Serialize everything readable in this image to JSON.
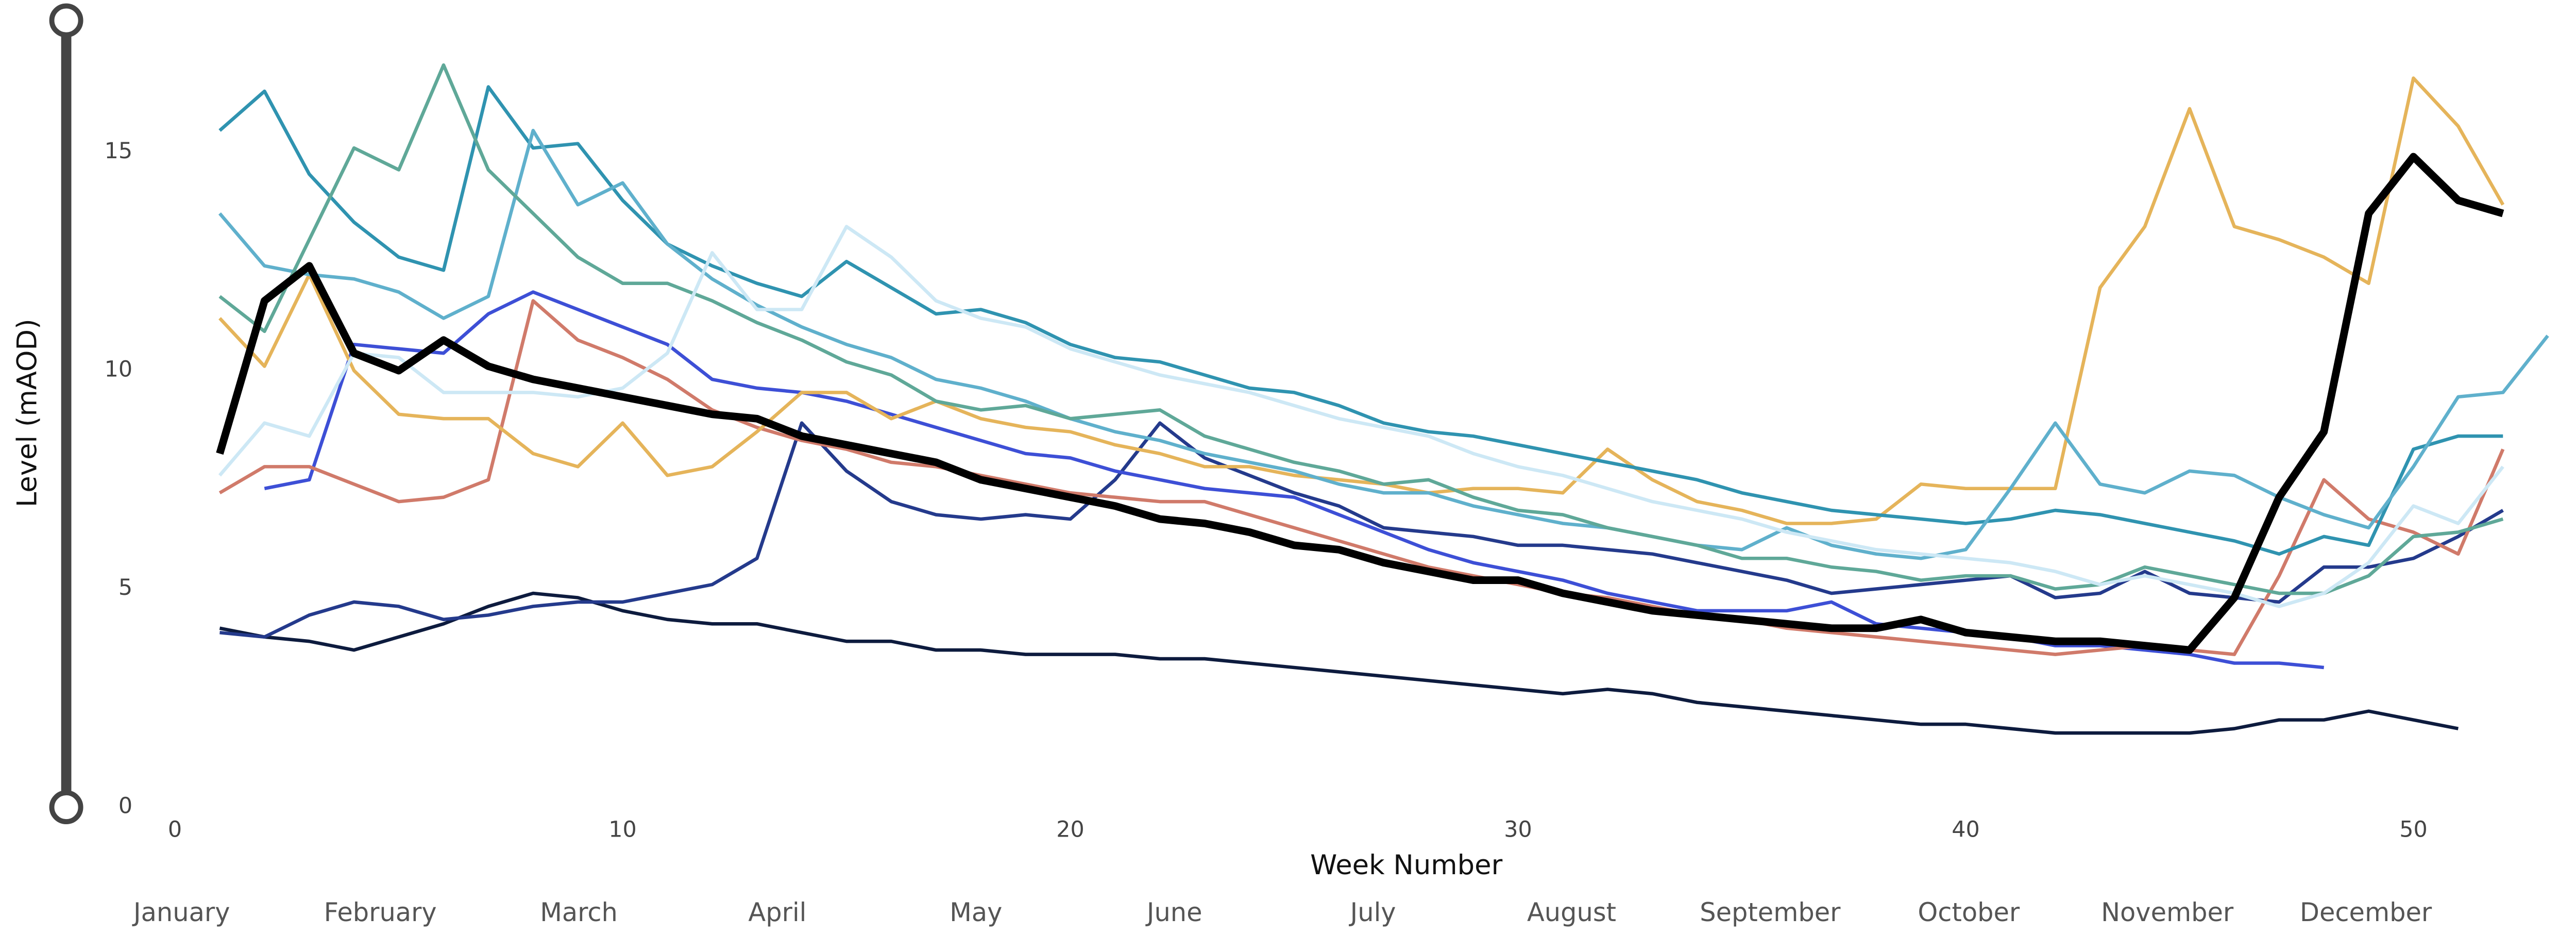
{
  "chart_data": {
    "type": "line",
    "x_label": "Week Number",
    "y_label": "Level (mAOD)",
    "x": [
      1,
      2,
      3,
      4,
      5,
      6,
      7,
      8,
      9,
      10,
      11,
      12,
      13,
      14,
      15,
      16,
      17,
      18,
      19,
      20,
      21,
      22,
      23,
      24,
      25,
      26,
      27,
      28,
      29,
      30,
      31,
      32,
      33,
      34,
      35,
      36,
      37,
      38,
      39,
      40,
      41,
      42,
      43,
      44,
      45,
      46,
      47,
      48,
      49,
      50,
      51,
      52,
      53
    ],
    "xlim": [
      0,
      53
    ],
    "xticks": [
      0,
      10,
      20,
      30,
      40,
      50
    ],
    "ylim": [
      0,
      18.1
    ],
    "yticks": [
      0,
      5,
      10,
      15
    ],
    "months": [
      "January",
      "February",
      "March",
      "April",
      "May",
      "June",
      "July",
      "August",
      "September",
      "October",
      "November",
      "December"
    ],
    "series": [
      {
        "color": "#0d1b3e",
        "line_width": 2,
        "values": [
          4.1,
          3.9,
          3.8,
          3.6,
          3.9,
          4.2,
          4.6,
          4.9,
          4.8,
          4.5,
          4.3,
          4.2,
          4.2,
          4.0,
          3.8,
          3.8,
          3.6,
          3.6,
          3.5,
          3.5,
          3.5,
          3.4,
          3.4,
          3.3,
          3.2,
          3.1,
          3.0,
          2.9,
          2.8,
          2.7,
          2.6,
          2.7,
          2.6,
          2.4,
          2.3,
          2.2,
          2.1,
          2.0,
          1.9,
          1.9,
          1.8,
          1.7,
          1.7,
          1.7,
          1.7,
          1.8,
          2.0,
          2.0,
          2.2,
          2.0,
          1.8,
          null,
          null
        ]
      },
      {
        "color": "#243a8c",
        "line_width": 2,
        "values": [
          4.0,
          3.9,
          4.4,
          4.7,
          4.6,
          4.3,
          4.4,
          4.6,
          4.7,
          4.7,
          4.9,
          5.1,
          5.7,
          8.8,
          7.7,
          7.0,
          6.7,
          6.6,
          6.7,
          6.6,
          7.5,
          8.8,
          8.0,
          7.6,
          7.2,
          6.9,
          6.4,
          6.3,
          6.2,
          6.0,
          6.0,
          5.9,
          5.8,
          5.6,
          5.4,
          5.2,
          4.9,
          5.0,
          5.1,
          5.2,
          5.3,
          4.8,
          4.9,
          5.4,
          4.9,
          4.8,
          4.7,
          5.5,
          5.5,
          5.7,
          6.2,
          6.8,
          null
        ]
      },
      {
        "color": "#3d4fd6",
        "line_width": 2,
        "values": [
          null,
          7.3,
          7.5,
          10.6,
          10.5,
          10.4,
          11.3,
          11.8,
          11.4,
          11.0,
          10.6,
          9.8,
          9.6,
          9.5,
          9.3,
          9.0,
          8.7,
          8.4,
          8.1,
          8.0,
          7.7,
          7.5,
          7.3,
          7.2,
          7.1,
          6.7,
          6.3,
          5.9,
          5.6,
          5.4,
          5.2,
          4.9,
          4.7,
          4.5,
          4.5,
          4.5,
          4.7,
          4.2,
          4.1,
          4.0,
          3.9,
          3.7,
          3.7,
          3.6,
          3.5,
          3.3,
          3.3,
          3.2,
          null,
          null,
          null,
          null,
          null
        ]
      },
      {
        "color": "#d07a6a",
        "line_width": 2,
        "values": [
          7.2,
          7.8,
          7.8,
          7.4,
          7.0,
          7.1,
          7.5,
          11.6,
          10.7,
          10.3,
          9.8,
          9.1,
          8.7,
          8.4,
          8.2,
          7.9,
          7.8,
          7.6,
          7.4,
          7.2,
          7.1,
          7.0,
          7.0,
          6.7,
          6.4,
          6.1,
          5.8,
          5.5,
          5.3,
          5.1,
          4.9,
          4.8,
          4.6,
          4.4,
          4.3,
          4.1,
          4.0,
          3.9,
          3.8,
          3.7,
          3.6,
          3.5,
          3.6,
          3.7,
          3.6,
          3.5,
          5.3,
          7.5,
          6.6,
          6.3,
          5.8,
          8.2,
          null
        ]
      },
      {
        "color": "#e5b45a",
        "line_width": 2,
        "values": [
          11.2,
          10.1,
          12.2,
          10.0,
          9.0,
          8.9,
          8.9,
          8.1,
          7.8,
          8.8,
          7.6,
          7.8,
          8.6,
          9.5,
          9.5,
          8.9,
          9.3,
          8.9,
          8.7,
          8.6,
          8.3,
          8.1,
          7.8,
          7.8,
          7.6,
          7.5,
          7.4,
          7.2,
          7.3,
          7.3,
          7.2,
          8.2,
          7.5,
          7.0,
          6.8,
          6.5,
          6.5,
          6.6,
          7.4,
          7.3,
          7.3,
          7.3,
          11.9,
          13.3,
          16.0,
          13.3,
          13.0,
          12.6,
          12.0,
          16.7,
          15.6,
          13.8,
          null
        ]
      },
      {
        "color": "#2f93b0",
        "line_width": 2,
        "values": [
          15.5,
          16.4,
          14.5,
          13.4,
          12.6,
          12.3,
          16.5,
          15.1,
          15.2,
          13.9,
          12.9,
          12.4,
          12.0,
          11.7,
          12.5,
          11.9,
          11.3,
          11.4,
          11.1,
          10.6,
          10.3,
          10.2,
          9.9,
          9.6,
          9.5,
          9.2,
          8.8,
          8.6,
          8.5,
          8.3,
          8.1,
          7.9,
          7.7,
          7.5,
          7.2,
          7.0,
          6.8,
          6.7,
          6.6,
          6.5,
          6.6,
          6.8,
          6.7,
          6.5,
          6.3,
          6.1,
          5.8,
          6.2,
          6.0,
          8.2,
          8.5,
          8.5,
          null
        ]
      },
      {
        "color": "#5fb0cc",
        "line_width": 2,
        "values": [
          13.6,
          12.4,
          12.2,
          12.1,
          11.8,
          11.2,
          11.7,
          15.5,
          13.8,
          14.3,
          12.9,
          12.1,
          11.5,
          11.0,
          10.6,
          10.3,
          9.8,
          9.6,
          9.3,
          8.9,
          8.6,
          8.4,
          8.1,
          7.9,
          7.7,
          7.4,
          7.2,
          7.2,
          6.9,
          6.7,
          6.5,
          6.4,
          6.2,
          6.0,
          5.9,
          6.4,
          6.0,
          5.8,
          5.7,
          5.9,
          7.3,
          8.8,
          7.4,
          7.2,
          7.7,
          7.6,
          7.1,
          6.7,
          6.4,
          7.8,
          9.4,
          9.5,
          10.8
        ]
      },
      {
        "color": "#5fa898",
        "line_width": 2,
        "values": [
          11.7,
          10.9,
          13.0,
          15.1,
          14.6,
          17.0,
          14.6,
          13.6,
          12.6,
          12.0,
          12.0,
          11.6,
          11.1,
          10.7,
          10.2,
          9.9,
          9.3,
          9.1,
          9.2,
          8.9,
          9.0,
          9.1,
          8.5,
          8.2,
          7.9,
          7.7,
          7.4,
          7.5,
          7.1,
          6.8,
          6.7,
          6.4,
          6.2,
          6.0,
          5.7,
          5.7,
          5.5,
          5.4,
          5.2,
          5.3,
          5.3,
          5.0,
          5.1,
          5.5,
          5.3,
          5.1,
          4.9,
          4.9,
          5.3,
          6.2,
          6.3,
          6.6,
          null
        ]
      },
      {
        "color": "#cde8f5",
        "line_width": 2,
        "values": [
          7.6,
          8.8,
          8.5,
          10.4,
          10.3,
          9.5,
          9.5,
          9.5,
          9.4,
          9.6,
          10.4,
          12.7,
          11.4,
          11.4,
          13.3,
          12.6,
          11.6,
          11.2,
          11.0,
          10.5,
          10.2,
          9.9,
          9.7,
          9.5,
          9.2,
          8.9,
          8.7,
          8.5,
          8.1,
          7.8,
          7.6,
          7.3,
          7.0,
          6.8,
          6.6,
          6.3,
          6.1,
          5.9,
          5.8,
          5.7,
          5.6,
          5.4,
          5.1,
          5.3,
          5.1,
          4.9,
          4.6,
          4.9,
          5.6,
          6.9,
          6.5,
          7.8,
          null
        ]
      },
      {
        "color": "#000000",
        "line_width": 4.5,
        "values": [
          8.1,
          11.6,
          12.4,
          10.4,
          10.0,
          10.7,
          10.1,
          9.8,
          9.6,
          9.4,
          9.2,
          9.0,
          8.9,
          8.5,
          8.3,
          8.1,
          7.9,
          7.5,
          7.3,
          7.1,
          6.9,
          6.6,
          6.5,
          6.3,
          6.0,
          5.9,
          5.6,
          5.4,
          5.2,
          5.2,
          4.9,
          4.7,
          4.5,
          4.4,
          4.3,
          4.2,
          4.1,
          4.1,
          4.3,
          4.0,
          3.9,
          3.8,
          3.8,
          3.7,
          3.6,
          4.8,
          7.1,
          8.6,
          13.6,
          14.9,
          13.9,
          13.6,
          null
        ]
      }
    ]
  }
}
